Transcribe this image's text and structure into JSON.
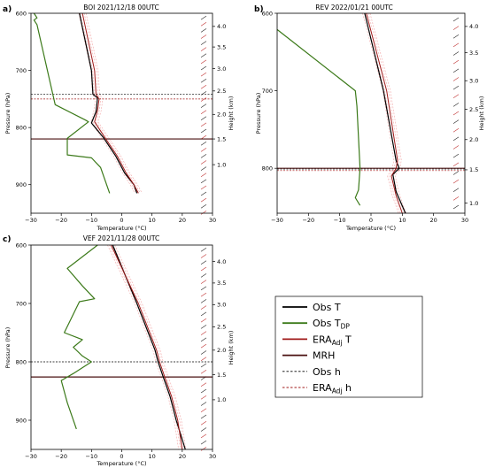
{
  "chart_data": [
    {
      "type": "line",
      "panel_label": "a)",
      "title": "BOI 2021/12/18 00UTC",
      "xlabel": "Temperature (°C)",
      "ylabel": "Pressure (hPa)",
      "y2label": "Height (km)",
      "xlim": [
        -30,
        30
      ],
      "ylim": [
        600,
        950
      ],
      "xticks": [
        -30,
        -20,
        -10,
        0,
        10,
        20,
        30
      ],
      "yticks": [
        600,
        700,
        800,
        900
      ],
      "y2ticks": [
        {
          "label": "4.0",
          "p": 623
        },
        {
          "label": "3.5",
          "p": 659
        },
        {
          "label": "3.0",
          "p": 697
        },
        {
          "label": "2.5",
          "p": 736
        },
        {
          "label": "2.0",
          "p": 777
        },
        {
          "label": "1.5",
          "p": 820
        },
        {
          "label": "1.0",
          "p": 865
        }
      ],
      "series": [
        {
          "name": "Obs T",
          "points": [
            [
              -14,
              600
            ],
            [
              -10,
              700
            ],
            [
              -9.5,
              742
            ],
            [
              -8,
              748
            ],
            [
              -8.5,
              772
            ],
            [
              -10,
              792
            ],
            [
              -6,
              818
            ],
            [
              -2,
              850
            ],
            [
              1,
              880
            ],
            [
              4,
              900
            ],
            [
              5,
              915
            ]
          ]
        },
        {
          "name": "ERA T",
          "points": [
            [
              -13,
              600
            ],
            [
              -9,
              700
            ],
            [
              -8.5,
              742
            ],
            [
              -7.5,
              750
            ],
            [
              -8,
              770
            ],
            [
              -9,
              790
            ],
            [
              -5.5,
              818
            ],
            [
              -1.5,
              850
            ],
            [
              1.5,
              880
            ],
            [
              4,
              900
            ],
            [
              5.5,
              915
            ]
          ]
        },
        {
          "name": "Obs TDP",
          "points": [
            [
              -29,
              600
            ],
            [
              -28,
              608
            ],
            [
              -29,
              612
            ],
            [
              -28,
              620
            ],
            [
              -22,
              760
            ],
            [
              -12,
              787
            ],
            [
              -11,
              790
            ],
            [
              -18,
              819
            ],
            [
              -18,
              848
            ],
            [
              -10,
              853
            ],
            [
              -7,
              870
            ],
            [
              -4,
              915
            ]
          ]
        }
      ],
      "mrh": [
        820
      ],
      "obs_h": [
        742
      ],
      "era_h": [
        750
      ]
    },
    {
      "type": "line",
      "panel_label": "b)",
      "title": "REV 2022/01/21 00UTC",
      "xlabel": "Temperature (°C)",
      "ylabel": "Pressure (hPa)",
      "y2label": "Height (km)",
      "xlim": [
        -30,
        30
      ],
      "ylim": [
        600,
        858
      ],
      "xticks": [
        -30,
        -20,
        -10,
        0,
        10,
        20,
        30
      ],
      "yticks": [
        600,
        700,
        800
      ],
      "y2ticks": [
        {
          "label": "4.0",
          "p": 617
        },
        {
          "label": "3.5",
          "p": 651
        },
        {
          "label": "3.0",
          "p": 687
        },
        {
          "label": "2.5",
          "p": 724
        },
        {
          "label": "2.0",
          "p": 763
        },
        {
          "label": "1.5",
          "p": 802
        },
        {
          "label": "1.0",
          "p": 845
        }
      ],
      "series": [
        {
          "name": "Obs T",
          "points": [
            [
              -2,
              600
            ],
            [
              4,
              700
            ],
            [
              8,
              790
            ],
            [
              9,
              800
            ],
            [
              7,
              808
            ],
            [
              8,
              830
            ],
            [
              11,
              858
            ]
          ]
        },
        {
          "name": "ERA T",
          "points": [
            [
              -1.5,
              600
            ],
            [
              5,
              700
            ],
            [
              8.5,
              790
            ],
            [
              8,
              800
            ],
            [
              6.5,
              810
            ],
            [
              8,
              835
            ],
            [
              10,
              858
            ]
          ]
        },
        {
          "name": "Obs TDP",
          "points": [
            [
              -30,
              621
            ],
            [
              -5,
              700
            ],
            [
              -4.5,
              720
            ],
            [
              -3.5,
              800
            ],
            [
              -4,
              828
            ],
            [
              -5,
              838
            ],
            [
              -3.5,
              848
            ]
          ]
        }
      ],
      "mrh": [
        800
      ],
      "obs_h": [
        801
      ],
      "era_h": [
        803
      ]
    },
    {
      "type": "line",
      "panel_label": "c)",
      "title": "VEF 2021/11/28 00UTC",
      "xlabel": "Temperature (°C)",
      "ylabel": "Pressure (hPa)",
      "y2label": "Height (km)",
      "xlim": [
        -30,
        30
      ],
      "ylim": [
        600,
        950
      ],
      "xticks": [
        -30,
        -20,
        -10,
        0,
        10,
        20,
        30
      ],
      "yticks": [
        600,
        700,
        800,
        900
      ],
      "y2ticks": [
        {
          "label": "4.0",
          "p": 628
        },
        {
          "label": "3.5",
          "p": 665
        },
        {
          "label": "3.0",
          "p": 702
        },
        {
          "label": "2.5",
          "p": 740
        },
        {
          "label": "2.0",
          "p": 780
        },
        {
          "label": "1.5",
          "p": 822
        },
        {
          "label": "1.0",
          "p": 865
        }
      ],
      "series": [
        {
          "name": "Obs T",
          "points": [
            [
              -3,
              600
            ],
            [
              5,
              700
            ],
            [
              11,
              780
            ],
            [
              12,
              800
            ],
            [
              14,
              830
            ],
            [
              16,
              860
            ],
            [
              18,
              900
            ],
            [
              21,
              950
            ]
          ]
        },
        {
          "name": "ERA T",
          "points": [
            [
              -3.5,
              600
            ],
            [
              5.5,
              700
            ],
            [
              11.5,
              780
            ],
            [
              12.5,
              800
            ],
            [
              14.5,
              830
            ],
            [
              16.5,
              860
            ],
            [
              18.5,
              900
            ],
            [
              20,
              950
            ]
          ]
        },
        {
          "name": "Obs TDP",
          "points": [
            [
              -8,
              600
            ],
            [
              -18,
              640
            ],
            [
              -13,
              670
            ],
            [
              -9,
              692
            ],
            [
              -14,
              697
            ],
            [
              -19,
              750
            ],
            [
              -13,
              762
            ],
            [
              -16,
              775
            ],
            [
              -13,
              790
            ],
            [
              -10,
              800
            ],
            [
              -16,
              820
            ],
            [
              -20,
              832
            ],
            [
              -18,
              870
            ],
            [
              -15,
              915
            ]
          ]
        }
      ],
      "mrh": [
        826
      ],
      "obs_h": [
        800
      ],
      "era_h": []
    }
  ],
  "legend": {
    "items": [
      {
        "label": "Obs T",
        "sub": "",
        "suffix": "",
        "color": "#000000",
        "style": "solid"
      },
      {
        "label": "Obs T",
        "sub": "DP",
        "suffix": "",
        "color": "#3c7a1a",
        "style": "solid"
      },
      {
        "label": "ERA",
        "sub": "Adj",
        "suffix": " T",
        "color": "#a01a1a",
        "style": "solid"
      },
      {
        "label": "MRH",
        "sub": "",
        "suffix": "",
        "color": "#4a1010",
        "style": "solid"
      },
      {
        "label": "Obs h",
        "sub": "",
        "suffix": "",
        "color": "#000000",
        "style": "dashed"
      },
      {
        "label": "ERA",
        "sub": "Adj",
        "suffix": " h",
        "color": "#a01a1a",
        "style": "dashed"
      }
    ]
  },
  "colors": {
    "obs_t": "#000000",
    "obs_tdp": "#3c7a1a",
    "era_t": "#a01a1a",
    "mrh": "#4a1010",
    "ensemble": "#f2a8a8",
    "wind_obs": "#222222",
    "wind_era": "#c03030"
  }
}
